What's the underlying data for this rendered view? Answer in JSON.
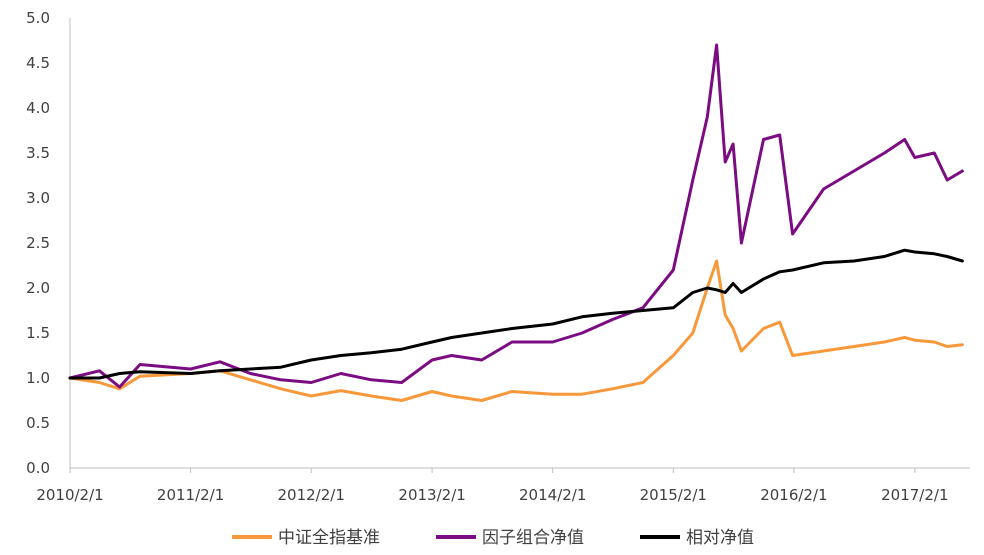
{
  "chart_data": {
    "type": "line",
    "title": "",
    "xlabel": "",
    "ylabel": "",
    "ylim": [
      0,
      5
    ],
    "yticks": [
      "0.0",
      "0.5",
      "1.0",
      "1.5",
      "2.0",
      "2.5",
      "3.0",
      "3.5",
      "4.0",
      "4.5",
      "5.0"
    ],
    "xticks": [
      "2010/2/1",
      "2011/2/1",
      "2012/2/1",
      "2013/2/1",
      "2014/2/1",
      "2015/2/1",
      "2016/2/1",
      "2017/2/1"
    ],
    "grid": false,
    "legend_position": "bottom",
    "x": [
      "2010/2/1",
      "2010/5/1",
      "2010/7/1",
      "2010/9/1",
      "2011/2/1",
      "2011/5/1",
      "2011/8/1",
      "2011/11/1",
      "2012/2/1",
      "2012/5/1",
      "2012/8/1",
      "2012/11/1",
      "2013/2/1",
      "2013/4/1",
      "2013/7/1",
      "2013/10/1",
      "2014/2/1",
      "2014/5/1",
      "2014/8/1",
      "2014/11/1",
      "2015/2/1",
      "2015/4/1",
      "2015/5/15",
      "2015/6/12",
      "2015/7/8",
      "2015/8/1",
      "2015/8/26",
      "2015/11/1",
      "2015/12/20",
      "2016/1/28",
      "2016/5/1",
      "2016/8/1",
      "2016/11/1",
      "2017/1/1",
      "2017/2/1",
      "2017/4/1",
      "2017/5/10",
      "2017/6/25"
    ],
    "series": [
      {
        "name": "中证全指基准",
        "color": "#F7983A",
        "values": [
          1.0,
          0.95,
          0.88,
          1.02,
          1.05,
          1.08,
          0.98,
          0.88,
          0.8,
          0.86,
          0.8,
          0.75,
          0.85,
          0.8,
          0.75,
          0.85,
          0.82,
          0.82,
          0.88,
          0.95,
          1.25,
          1.5,
          2.0,
          2.3,
          1.7,
          1.55,
          1.3,
          1.55,
          1.62,
          1.25,
          1.3,
          1.35,
          1.4,
          1.45,
          1.42,
          1.4,
          1.35,
          1.37
        ]
      },
      {
        "name": "因子组合净值",
        "color": "#7B0C82",
        "values": [
          1.0,
          1.08,
          0.9,
          1.15,
          1.1,
          1.18,
          1.05,
          0.98,
          0.95,
          1.05,
          0.98,
          0.95,
          1.2,
          1.25,
          1.2,
          1.4,
          1.4,
          1.5,
          1.65,
          1.78,
          2.2,
          3.2,
          3.9,
          4.7,
          3.4,
          3.6,
          2.5,
          3.65,
          3.7,
          2.6,
          3.1,
          3.3,
          3.5,
          3.65,
          3.45,
          3.5,
          3.2,
          3.3
        ]
      },
      {
        "name": "相对净值",
        "color": "#000000",
        "values": [
          1.0,
          1.0,
          1.05,
          1.07,
          1.05,
          1.08,
          1.1,
          1.12,
          1.2,
          1.25,
          1.28,
          1.32,
          1.4,
          1.45,
          1.5,
          1.55,
          1.6,
          1.68,
          1.72,
          1.75,
          1.78,
          1.95,
          2.0,
          1.98,
          1.95,
          2.05,
          1.95,
          2.1,
          2.18,
          2.2,
          2.28,
          2.3,
          2.35,
          2.42,
          2.4,
          2.38,
          2.35,
          2.3
        ]
      }
    ]
  }
}
